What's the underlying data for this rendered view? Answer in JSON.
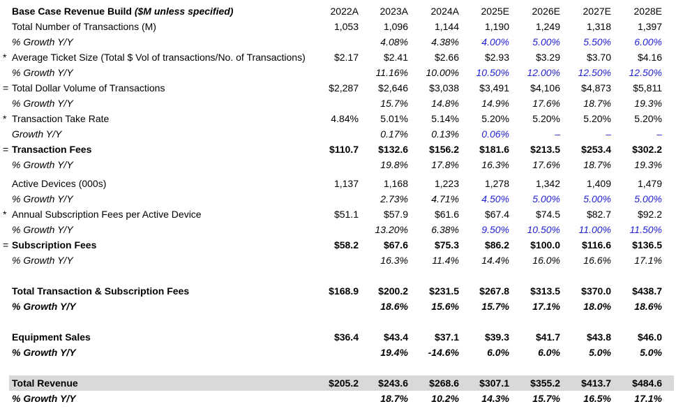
{
  "header": {
    "title": "Base Case Revenue Build",
    "subtitle": "($M unless specified)",
    "years": [
      "2022A",
      "2023A",
      "2024A",
      "2025E",
      "2026E",
      "2027E",
      "2028E"
    ]
  },
  "colors": {
    "input_blue": "#1f1fd6",
    "total_fill": "#d9d9d9"
  },
  "rows": [
    {
      "prefix": "",
      "label": "Total Number of Transactions (M)",
      "values": [
        "1,053",
        "1,096",
        "1,144",
        "1,190",
        "1,249",
        "1,318",
        "1,397"
      ]
    },
    {
      "prefix": "",
      "label": "% Growth Y/Y",
      "values": [
        "",
        "4.08%",
        "4.38%",
        "4.00%",
        "5.00%",
        "5.50%",
        "6.00%"
      ]
    },
    {
      "prefix": "*",
      "label": "Average Ticket Size (Total $ Vol of transactions/No. of Transactions)",
      "values": [
        "$2.17",
        "$2.41",
        "$2.66",
        "$2.93",
        "$3.29",
        "$3.70",
        "$4.16"
      ]
    },
    {
      "prefix": "",
      "label": "% Growth Y/Y",
      "values": [
        "",
        "11.16%",
        "10.00%",
        "10.50%",
        "12.00%",
        "12.50%",
        "12.50%"
      ]
    },
    {
      "prefix": "=",
      "label": "Total Dollar Volume of Transactions",
      "values": [
        "$2,287",
        "$2,646",
        "$3,038",
        "$3,491",
        "$4,106",
        "$4,873",
        "$5,811"
      ]
    },
    {
      "prefix": "",
      "label": "% Growth Y/Y",
      "values": [
        "",
        "15.7%",
        "14.8%",
        "14.9%",
        "17.6%",
        "18.7%",
        "19.3%"
      ]
    },
    {
      "prefix": "*",
      "label": "Transaction Take Rate",
      "values": [
        "4.84%",
        "5.01%",
        "5.14%",
        "5.20%",
        "5.20%",
        "5.20%",
        "5.20%"
      ]
    },
    {
      "prefix": "",
      "label": "Growth Y/Y",
      "values": [
        "",
        "0.17%",
        "0.13%",
        "0.06%",
        "–",
        "–",
        "–"
      ]
    },
    {
      "prefix": "=",
      "label": "Transaction Fees",
      "values": [
        "$110.7",
        "$132.6",
        "$156.2",
        "$181.6",
        "$213.5",
        "$253.4",
        "$302.2"
      ]
    },
    {
      "prefix": "",
      "label": "% Growth Y/Y",
      "values": [
        "",
        "19.8%",
        "17.8%",
        "16.3%",
        "17.6%",
        "18.7%",
        "19.3%"
      ]
    },
    {
      "prefix": "",
      "label": "Active Devices (000s)",
      "values": [
        "1,137",
        "1,168",
        "1,223",
        "1,278",
        "1,342",
        "1,409",
        "1,479"
      ]
    },
    {
      "prefix": "",
      "label": "% Growth Y/Y",
      "values": [
        "",
        "2.73%",
        "4.71%",
        "4.50%",
        "5.00%",
        "5.00%",
        "5.00%"
      ]
    },
    {
      "prefix": "*",
      "label": "Annual Subscription Fees per Active Device",
      "values": [
        "$51.1",
        "$57.9",
        "$61.6",
        "$67.4",
        "$74.5",
        "$82.7",
        "$92.2"
      ]
    },
    {
      "prefix": "",
      "label": "% Growth Y/Y",
      "values": [
        "",
        "13.20%",
        "6.38%",
        "9.50%",
        "10.50%",
        "11.00%",
        "11.50%"
      ]
    },
    {
      "prefix": "=",
      "label": "Subscription Fees",
      "values": [
        "$58.2",
        "$67.6",
        "$75.3",
        "$86.2",
        "$100.0",
        "$116.6",
        "$136.5"
      ]
    },
    {
      "prefix": "",
      "label": "% Growth Y/Y",
      "values": [
        "",
        "16.3%",
        "11.4%",
        "14.4%",
        "16.0%",
        "16.6%",
        "17.1%"
      ]
    },
    {
      "prefix": "",
      "label": "Total Transaction & Subscription Fees",
      "values": [
        "$168.9",
        "$200.2",
        "$231.5",
        "$267.8",
        "$313.5",
        "$370.0",
        "$438.7"
      ]
    },
    {
      "prefix": "",
      "label": "% Growth Y/Y",
      "values": [
        "",
        "18.6%",
        "15.6%",
        "15.7%",
        "17.1%",
        "18.0%",
        "18.6%"
      ]
    },
    {
      "prefix": "",
      "label": "Equipment Sales",
      "values": [
        "$36.4",
        "$43.4",
        "$37.1",
        "$39.3",
        "$41.7",
        "$43.8",
        "$46.0"
      ]
    },
    {
      "prefix": "",
      "label": "% Growth Y/Y",
      "values": [
        "",
        "19.4%",
        "-14.6%",
        "6.0%",
        "6.0%",
        "5.0%",
        "5.0%"
      ]
    },
    {
      "prefix": "",
      "label": "Total Revenue",
      "values": [
        "$205.2",
        "$243.6",
        "$268.6",
        "$307.1",
        "$355.2",
        "$413.7",
        "$484.6"
      ]
    },
    {
      "prefix": "",
      "label": "% Growth Y/Y",
      "values": [
        "",
        "18.7%",
        "10.2%",
        "14.3%",
        "15.7%",
        "16.5%",
        "17.1%"
      ]
    }
  ]
}
